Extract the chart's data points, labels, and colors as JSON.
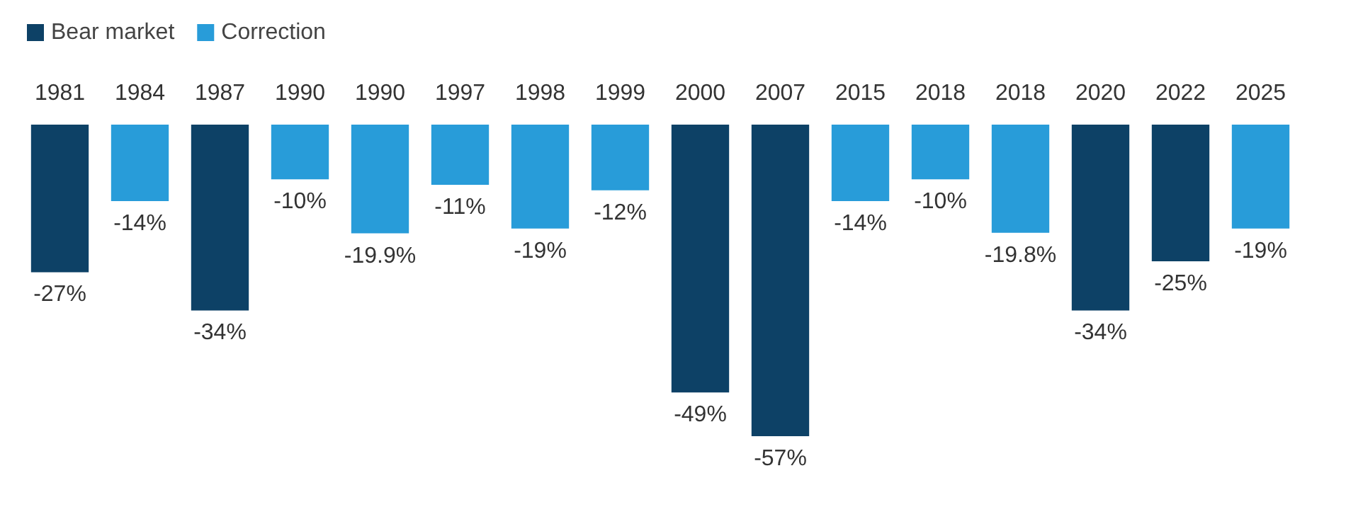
{
  "chart_data": {
    "type": "bar",
    "stacked": true,
    "legend": "top left",
    "categories": [
      "1981",
      "1984",
      "1987",
      "1990",
      "1990",
      "1997",
      "1998",
      "1999",
      "2000",
      "2007",
      "2015",
      "2018",
      "2018",
      "2020",
      "2022",
      "2025"
    ],
    "series": [
      {
        "name": "Bear market",
        "color": "#0d4166",
        "values": [
          -27,
          null,
          -34,
          null,
          null,
          null,
          null,
          null,
          -49,
          -57,
          null,
          null,
          null,
          -34,
          -25,
          null
        ],
        "value_labels": [
          "-27%",
          null,
          "-34%",
          null,
          null,
          null,
          null,
          null,
          "-49%",
          "-57%",
          null,
          null,
          null,
          "-34%",
          "-25%",
          null
        ]
      },
      {
        "name": "Correction",
        "color": "#289cd9",
        "values": [
          null,
          -14,
          null,
          -10,
          -19.9,
          -11,
          -19,
          -12,
          null,
          null,
          -14,
          -10,
          -19.8,
          null,
          null,
          -19
        ],
        "value_labels": [
          null,
          "-14%",
          null,
          "-10%",
          "-19.9%",
          "-11%",
          "-19%",
          "-12%",
          null,
          null,
          "-14%",
          "-10%",
          "-19.8%",
          null,
          null,
          "-19%"
        ]
      }
    ]
  }
}
